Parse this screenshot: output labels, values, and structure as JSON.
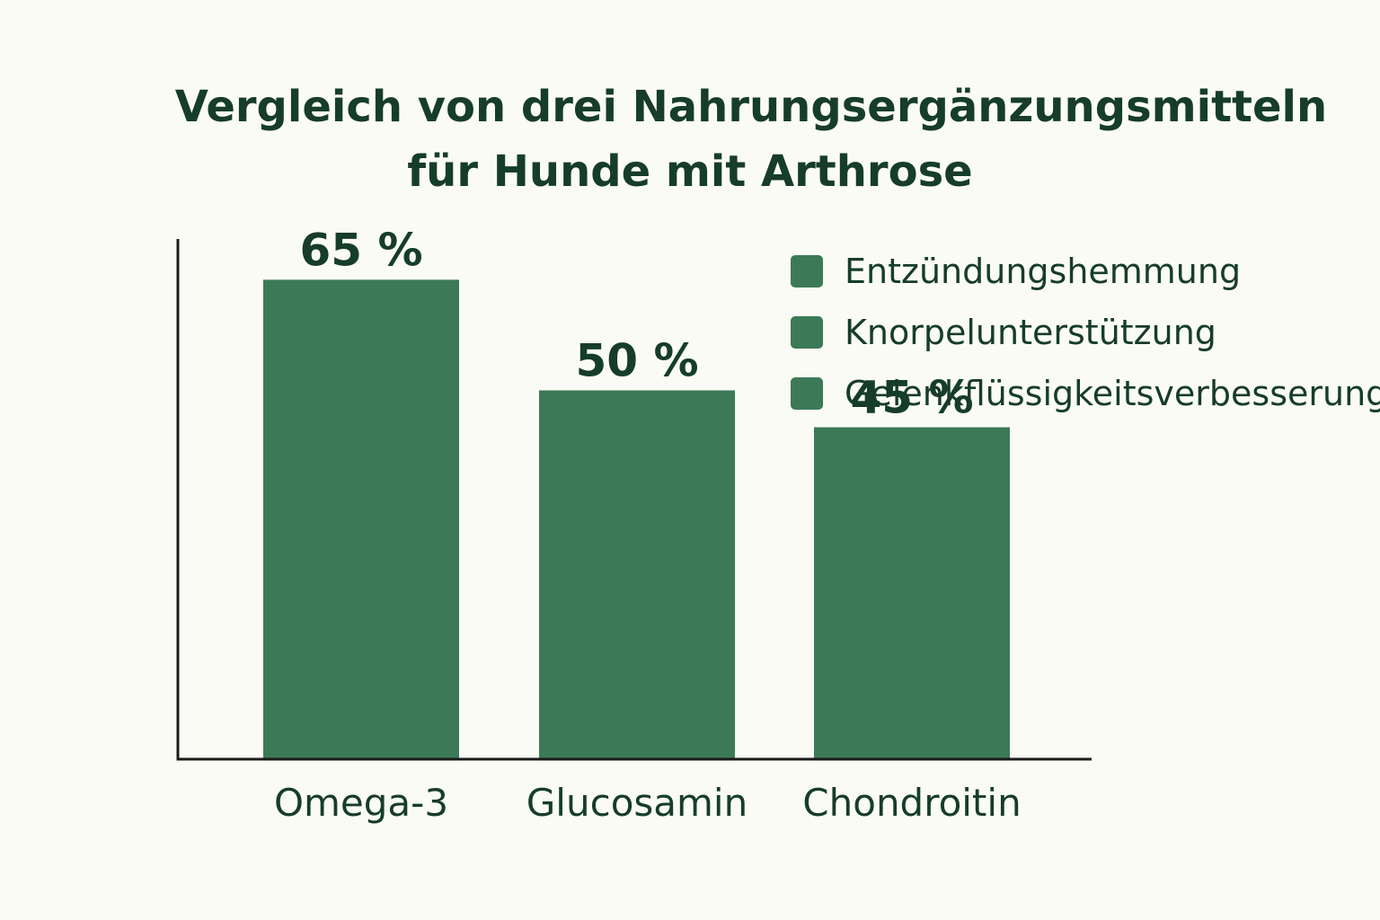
{
  "chart_data": {
    "type": "bar",
    "title": [
      "Vergleich von drei Nahrungsergänzungsmitteln",
      "für Hunde mit Arthrose"
    ],
    "categories": [
      "Omega-3",
      "Glucosamin",
      "Chondroitin"
    ],
    "values": [
      65,
      50,
      45
    ],
    "value_labels": [
      "65 %",
      "50 %",
      "45 %"
    ],
    "ylim": [
      0,
      100
    ],
    "xlabel": "",
    "ylabel": "",
    "grid": false,
    "legend_position": "top-right",
    "legend": [
      "Entzündungshemmung",
      "Knorpelunterstützung",
      "Gelenkflüssigkeitsverbesserung"
    ],
    "colors": {
      "bar": "#3c7a57",
      "text": "#163d28",
      "axis": "#1b1b1b",
      "background": "#fbfbf5"
    }
  }
}
